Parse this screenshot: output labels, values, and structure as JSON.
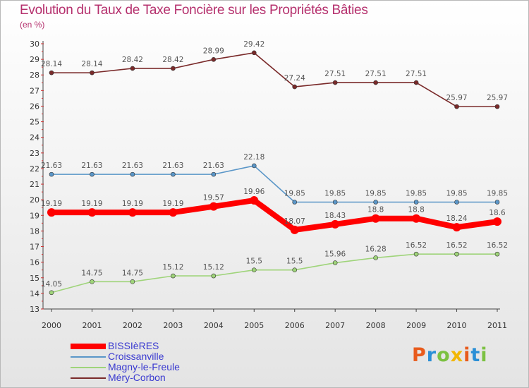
{
  "header": {
    "title": "Evolution du Taux de Taxe Foncière sur les Propriétés Bâties",
    "unit": "(en %)"
  },
  "logo": {
    "text": "Proxiti",
    "colors": [
      "#e85b1c",
      "#2a8fd6",
      "#7cc142",
      "#f2b705"
    ]
  },
  "chart_data": {
    "type": "line",
    "title": "Evolution du Taux de Taxe Foncière sur les Propriétés Bâties",
    "ylabel": "(en %)",
    "xlabel": "",
    "ylim": [
      13,
      30
    ],
    "yticks": [
      13,
      14,
      15,
      16,
      17,
      18,
      19,
      20,
      21,
      22,
      23,
      24,
      25,
      26,
      27,
      28,
      29,
      30
    ],
    "x": [
      "2000",
      "2001",
      "2002",
      "2003",
      "2004",
      "2005",
      "2006",
      "2007",
      "2008",
      "2009",
      "2010",
      "2011"
    ],
    "grid": false,
    "legend_position": "bottom-left",
    "series": [
      {
        "name": "Méry-Corbon",
        "color": "#7a2a2a",
        "values": [
          28.14,
          28.14,
          28.42,
          28.42,
          28.99,
          29.42,
          27.24,
          27.51,
          27.51,
          27.51,
          25.97,
          25.97
        ],
        "labels": [
          "28.14",
          "28.14",
          "28.42",
          "28.42",
          "28.99",
          "29.42",
          "27.24",
          "27.51",
          "27.51",
          "27.51",
          "25.97",
          "25.97"
        ]
      },
      {
        "name": "Croissanville",
        "color": "#5a96c8",
        "values": [
          21.63,
          21.63,
          21.63,
          21.63,
          21.63,
          22.18,
          19.85,
          19.85,
          19.85,
          19.85,
          19.85,
          19.85
        ],
        "labels": [
          "21.63",
          "21.63",
          "21.63",
          "21.63",
          "21.63",
          "22.18",
          "19.85",
          "19.85",
          "19.85",
          "19.85",
          "19.85",
          "19.85"
        ]
      },
      {
        "name": "BISSIèRES",
        "color": "#ff0000",
        "values": [
          19.19,
          19.19,
          19.19,
          19.19,
          19.57,
          19.96,
          18.07,
          18.43,
          18.8,
          18.8,
          18.24,
          18.6
        ],
        "labels": [
          "19.19",
          "19.19",
          "19.19",
          "19.19",
          "19.57",
          "19.96",
          "18.07",
          "18.43",
          "18.8",
          "18.8",
          "18.24",
          "18.6"
        ]
      },
      {
        "name": "Magny-le-Freule",
        "color": "#9fd47a",
        "values": [
          14.05,
          14.75,
          14.75,
          15.12,
          15.12,
          15.5,
          15.5,
          15.96,
          16.28,
          16.52,
          16.52,
          16.52
        ],
        "labels": [
          "14.05",
          "14.75",
          "14.75",
          "15.12",
          "15.12",
          "15.5",
          "15.5",
          "15.96",
          "16.28",
          "16.52",
          "16.52",
          "16.52"
        ]
      }
    ]
  },
  "legend": {
    "items": [
      {
        "label": "BISSIèRES",
        "color": "#ff0000",
        "thickness": 8
      },
      {
        "label": "Croissanville",
        "color": "#5a96c8",
        "thickness": 2
      },
      {
        "label": "Magny-le-Freule",
        "color": "#9fd47a",
        "thickness": 2
      },
      {
        "label": "Méry-Corbon",
        "color": "#7a2a2a",
        "thickness": 2
      }
    ]
  }
}
